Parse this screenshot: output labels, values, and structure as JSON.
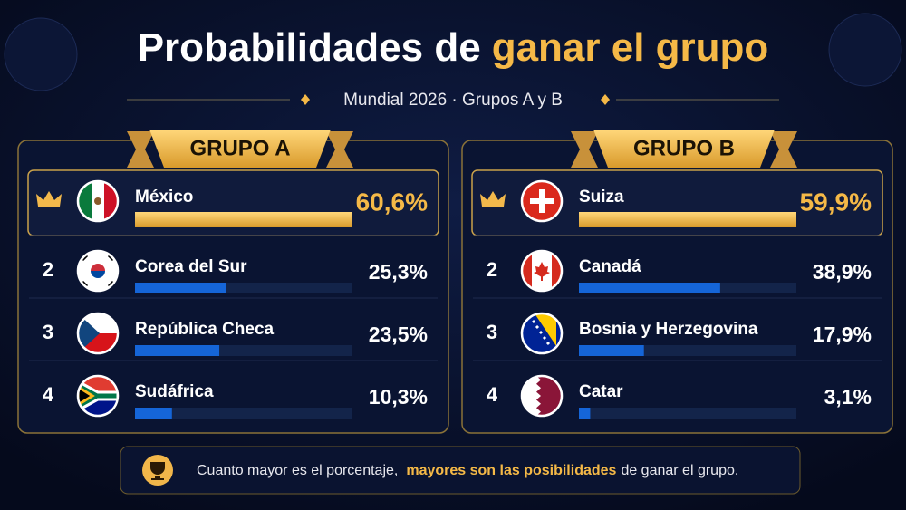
{
  "header": {
    "title_white": "Probabilidades de",
    "title_gold": "ganar el grupo",
    "subtitle": "Mundial 2026 · Grupos A y B"
  },
  "groups": [
    {
      "title": "GRUPO A",
      "rows": [
        {
          "name": "México",
          "value": 60.6,
          "value_label": "60,6%"
        },
        {
          "rank": 2,
          "name": "Corea del Sur",
          "value": 25.3,
          "value_label": "25,3%"
        },
        {
          "rank": 3,
          "name": "República Checa",
          "value": 23.5,
          "value_label": "23,5%"
        },
        {
          "rank": 4,
          "name": "Sudáfrica",
          "value": 10.3,
          "value_label": "10,3%"
        }
      ]
    },
    {
      "title": "GRUPO B",
      "rows": [
        {
          "name": "Suiza",
          "value": 59.9,
          "value_label": "59,9%"
        },
        {
          "rank": 2,
          "name": "Canadá",
          "value": 38.9,
          "value_label": "38,9%"
        },
        {
          "rank": 3,
          "name": "Bosnia y Herzegovina",
          "value": 17.9,
          "value_label": "17,9%"
        },
        {
          "rank": 4,
          "name": "Catar",
          "value": 3.1,
          "value_label": "3,1%"
        }
      ]
    }
  ],
  "footer": {
    "text_start": "Cuanto mayor es el porcentaje,",
    "text_highlight": "mayores son las posibilidades",
    "text_end": "de ganar el grupo."
  }
}
